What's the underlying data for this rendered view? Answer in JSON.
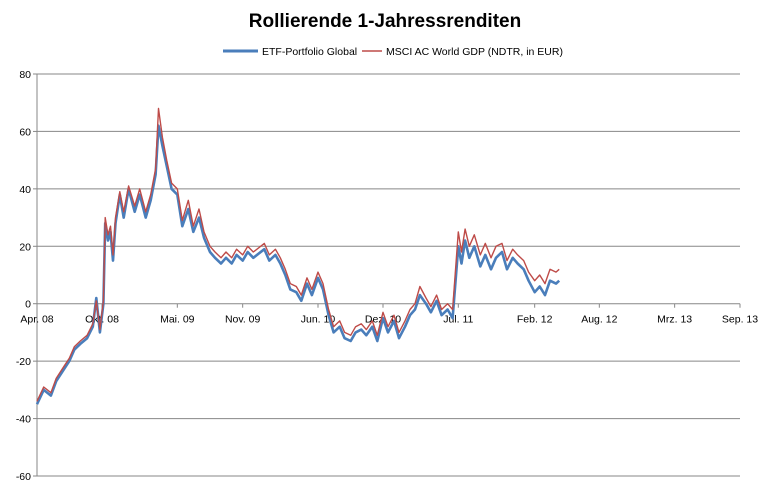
{
  "chart_data": {
    "type": "line",
    "title": "Rollierende 1-Jahressrenditen",
    "xlabel": "",
    "ylabel": "",
    "ylim": [
      -60,
      80
    ],
    "yticks": [
      -60,
      -40,
      -20,
      0,
      20,
      40,
      60,
      80
    ],
    "xlim": [
      "2008-04-01",
      "2013-09-01"
    ],
    "x_tick_labels": [
      {
        "label": "Apr. 08",
        "date": "2008-04-01"
      },
      {
        "label": "Okt. 08",
        "date": "2008-10-01"
      },
      {
        "label": "Mai. 09",
        "date": "2009-05-01"
      },
      {
        "label": "Nov. 09",
        "date": "2009-11-01"
      },
      {
        "label": "Jun. 10",
        "date": "2010-06-01"
      },
      {
        "label": "Dez. 10",
        "date": "2010-12-01"
      },
      {
        "label": "Jul. 11",
        "date": "2011-07-01"
      },
      {
        "label": "Feb. 12",
        "date": "2012-02-01"
      },
      {
        "label": "Aug. 12",
        "date": "2012-08-01"
      },
      {
        "label": "Mrz. 13",
        "date": "2013-03-01"
      },
      {
        "label": "Sep. 13",
        "date": "2013-09-01"
      }
    ],
    "grid": true,
    "legend_position": "top",
    "series": [
      {
        "name": "ETF-Portfolio Global",
        "color": "#4a7ebb",
        "points": [
          [
            "2008-04-01",
            -35
          ],
          [
            "2008-04-20",
            -30
          ],
          [
            "2008-05-10",
            -32
          ],
          [
            "2008-05-25",
            -27
          ],
          [
            "2008-06-15",
            -23
          ],
          [
            "2008-07-01",
            -20
          ],
          [
            "2008-07-15",
            -16
          ],
          [
            "2008-08-01",
            -14
          ],
          [
            "2008-08-20",
            -12
          ],
          [
            "2008-09-05",
            -8
          ],
          [
            "2008-09-15",
            2
          ],
          [
            "2008-09-25",
            -10
          ],
          [
            "2008-10-05",
            0
          ],
          [
            "2008-10-10",
            28
          ],
          [
            "2008-10-18",
            22
          ],
          [
            "2008-10-25",
            25
          ],
          [
            "2008-11-01",
            15
          ],
          [
            "2008-11-08",
            28
          ],
          [
            "2008-11-20",
            38
          ],
          [
            "2008-12-01",
            30
          ],
          [
            "2008-12-15",
            40
          ],
          [
            "2009-01-01",
            32
          ],
          [
            "2009-01-15",
            38
          ],
          [
            "2009-02-01",
            30
          ],
          [
            "2009-02-15",
            36
          ],
          [
            "2009-03-01",
            45
          ],
          [
            "2009-03-09",
            62
          ],
          [
            "2009-03-20",
            55
          ],
          [
            "2009-04-01",
            48
          ],
          [
            "2009-04-15",
            40
          ],
          [
            "2009-05-01",
            38
          ],
          [
            "2009-05-15",
            27
          ],
          [
            "2009-06-01",
            33
          ],
          [
            "2009-06-15",
            25
          ],
          [
            "2009-07-01",
            30
          ],
          [
            "2009-07-15",
            23
          ],
          [
            "2009-08-01",
            18
          ],
          [
            "2009-08-15",
            16
          ],
          [
            "2009-09-01",
            14
          ],
          [
            "2009-09-15",
            16
          ],
          [
            "2009-10-01",
            14
          ],
          [
            "2009-10-15",
            17
          ],
          [
            "2009-11-01",
            15
          ],
          [
            "2009-11-15",
            18
          ],
          [
            "2009-12-01",
            16
          ],
          [
            "2010-01-01",
            19
          ],
          [
            "2010-01-15",
            15
          ],
          [
            "2010-02-01",
            17
          ],
          [
            "2010-02-15",
            14
          ],
          [
            "2010-03-01",
            10
          ],
          [
            "2010-03-15",
            5
          ],
          [
            "2010-04-01",
            4
          ],
          [
            "2010-04-15",
            1
          ],
          [
            "2010-05-01",
            7
          ],
          [
            "2010-05-15",
            3
          ],
          [
            "2010-06-01",
            9
          ],
          [
            "2010-06-15",
            5
          ],
          [
            "2010-07-01",
            -4
          ],
          [
            "2010-07-15",
            -10
          ],
          [
            "2010-08-01",
            -8
          ],
          [
            "2010-08-15",
            -12
          ],
          [
            "2010-09-01",
            -13
          ],
          [
            "2010-09-15",
            -10
          ],
          [
            "2010-10-01",
            -9
          ],
          [
            "2010-10-15",
            -11
          ],
          [
            "2010-11-01",
            -8
          ],
          [
            "2010-11-15",
            -13
          ],
          [
            "2010-12-01",
            -5
          ],
          [
            "2010-12-15",
            -10
          ],
          [
            "2011-01-01",
            -6
          ],
          [
            "2011-01-15",
            -12
          ],
          [
            "2011-02-01",
            -8
          ],
          [
            "2011-02-15",
            -4
          ],
          [
            "2011-03-01",
            -2
          ],
          [
            "2011-03-15",
            3
          ],
          [
            "2011-04-01",
            0
          ],
          [
            "2011-04-15",
            -3
          ],
          [
            "2011-05-01",
            1
          ],
          [
            "2011-05-15",
            -4
          ],
          [
            "2011-06-01",
            -2
          ],
          [
            "2011-06-15",
            -5
          ],
          [
            "2011-07-01",
            20
          ],
          [
            "2011-07-10",
            14
          ],
          [
            "2011-07-20",
            22
          ],
          [
            "2011-08-01",
            16
          ],
          [
            "2011-08-15",
            20
          ],
          [
            "2011-09-01",
            13
          ],
          [
            "2011-09-15",
            17
          ],
          [
            "2011-10-01",
            12
          ],
          [
            "2011-10-15",
            16
          ],
          [
            "2011-11-01",
            18
          ],
          [
            "2011-11-15",
            12
          ],
          [
            "2011-12-01",
            16
          ],
          [
            "2011-12-15",
            14
          ],
          [
            "2012-01-01",
            12
          ],
          [
            "2012-01-15",
            8
          ],
          [
            "2012-02-01",
            4
          ],
          [
            "2012-02-15",
            6
          ],
          [
            "2012-03-01",
            3
          ],
          [
            "2012-03-15",
            8
          ],
          [
            "2012-04-01",
            7
          ],
          [
            "2012-04-10",
            8
          ]
        ]
      },
      {
        "name": "MSCI AC World GDP (NDTR, in EUR)",
        "color": "#be4b48",
        "points": [
          [
            "2008-04-01",
            -34
          ],
          [
            "2008-04-20",
            -29
          ],
          [
            "2008-05-10",
            -31
          ],
          [
            "2008-05-25",
            -26
          ],
          [
            "2008-06-15",
            -22
          ],
          [
            "2008-07-01",
            -19
          ],
          [
            "2008-07-15",
            -15
          ],
          [
            "2008-08-01",
            -13
          ],
          [
            "2008-08-20",
            -11
          ],
          [
            "2008-09-05",
            -7
          ],
          [
            "2008-09-15",
            1
          ],
          [
            "2008-09-25",
            -9
          ],
          [
            "2008-10-05",
            1
          ],
          [
            "2008-10-10",
            30
          ],
          [
            "2008-10-18",
            24
          ],
          [
            "2008-10-25",
            27
          ],
          [
            "2008-11-01",
            17
          ],
          [
            "2008-11-08",
            30
          ],
          [
            "2008-11-20",
            39
          ],
          [
            "2008-12-01",
            32
          ],
          [
            "2008-12-15",
            41
          ],
          [
            "2009-01-01",
            34
          ],
          [
            "2009-01-15",
            40
          ],
          [
            "2009-02-01",
            32
          ],
          [
            "2009-02-15",
            38
          ],
          [
            "2009-03-01",
            47
          ],
          [
            "2009-03-09",
            68
          ],
          [
            "2009-03-20",
            58
          ],
          [
            "2009-04-01",
            50
          ],
          [
            "2009-04-15",
            42
          ],
          [
            "2009-05-01",
            40
          ],
          [
            "2009-05-15",
            29
          ],
          [
            "2009-06-01",
            36
          ],
          [
            "2009-06-15",
            27
          ],
          [
            "2009-07-01",
            33
          ],
          [
            "2009-07-15",
            25
          ],
          [
            "2009-08-01",
            20
          ],
          [
            "2009-08-15",
            18
          ],
          [
            "2009-09-01",
            16
          ],
          [
            "2009-09-15",
            18
          ],
          [
            "2009-10-01",
            16
          ],
          [
            "2009-10-15",
            19
          ],
          [
            "2009-11-01",
            17
          ],
          [
            "2009-11-15",
            20
          ],
          [
            "2009-12-01",
            18
          ],
          [
            "2010-01-01",
            21
          ],
          [
            "2010-01-15",
            17
          ],
          [
            "2010-02-01",
            19
          ],
          [
            "2010-02-15",
            16
          ],
          [
            "2010-03-01",
            12
          ],
          [
            "2010-03-15",
            7
          ],
          [
            "2010-04-01",
            6
          ],
          [
            "2010-04-15",
            3
          ],
          [
            "2010-05-01",
            9
          ],
          [
            "2010-05-15",
            5
          ],
          [
            "2010-06-01",
            11
          ],
          [
            "2010-06-15",
            7
          ],
          [
            "2010-07-01",
            -2
          ],
          [
            "2010-07-15",
            -8
          ],
          [
            "2010-08-01",
            -6
          ],
          [
            "2010-08-15",
            -10
          ],
          [
            "2010-09-01",
            -11
          ],
          [
            "2010-09-15",
            -8
          ],
          [
            "2010-10-01",
            -7
          ],
          [
            "2010-10-15",
            -9
          ],
          [
            "2010-11-01",
            -6
          ],
          [
            "2010-11-15",
            -11
          ],
          [
            "2010-12-01",
            -3
          ],
          [
            "2010-12-15",
            -8
          ],
          [
            "2011-01-01",
            -4
          ],
          [
            "2011-01-15",
            -10
          ],
          [
            "2011-02-01",
            -6
          ],
          [
            "2011-02-15",
            -2
          ],
          [
            "2011-03-01",
            0
          ],
          [
            "2011-03-15",
            6
          ],
          [
            "2011-04-01",
            2
          ],
          [
            "2011-04-15",
            -1
          ],
          [
            "2011-05-01",
            3
          ],
          [
            "2011-05-15",
            -2
          ],
          [
            "2011-06-01",
            0
          ],
          [
            "2011-06-15",
            -2
          ],
          [
            "2011-07-01",
            25
          ],
          [
            "2011-07-10",
            18
          ],
          [
            "2011-07-20",
            26
          ],
          [
            "2011-08-01",
            20
          ],
          [
            "2011-08-15",
            24
          ],
          [
            "2011-09-01",
            17
          ],
          [
            "2011-09-15",
            21
          ],
          [
            "2011-10-01",
            16
          ],
          [
            "2011-10-15",
            20
          ],
          [
            "2011-11-01",
            21
          ],
          [
            "2011-11-15",
            15
          ],
          [
            "2011-12-01",
            19
          ],
          [
            "2011-12-15",
            17
          ],
          [
            "2012-01-01",
            15
          ],
          [
            "2012-01-15",
            11
          ],
          [
            "2012-02-01",
            8
          ],
          [
            "2012-02-15",
            10
          ],
          [
            "2012-03-01",
            7
          ],
          [
            "2012-03-15",
            12
          ],
          [
            "2012-04-01",
            11
          ],
          [
            "2012-04-10",
            12
          ]
        ]
      }
    ]
  }
}
